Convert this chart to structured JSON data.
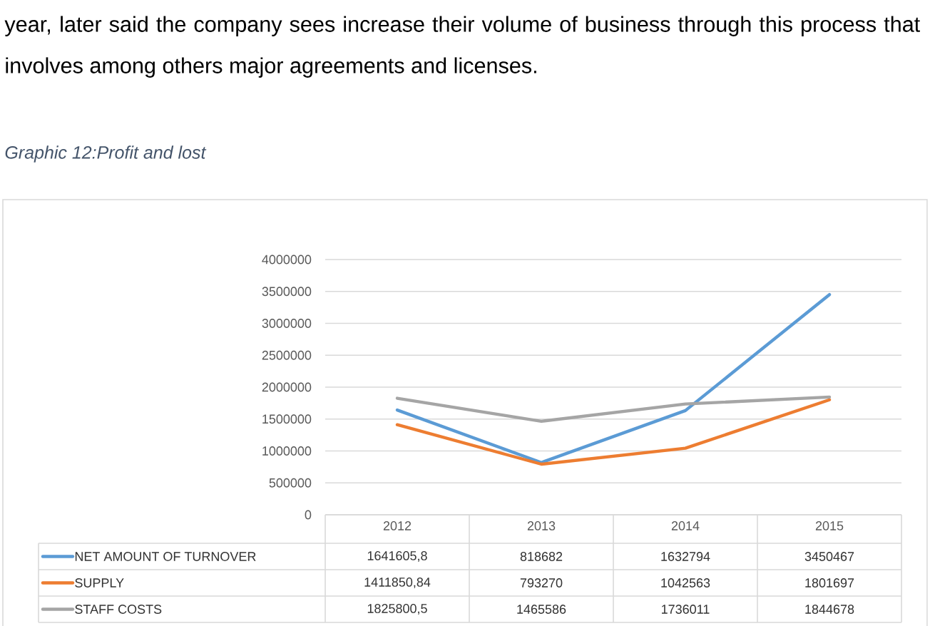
{
  "chart_data": {
    "type": "line",
    "title": "Graphic 12:Profit and lost",
    "annotations": [
      "year, later said the company sees increase their volume of business through this process that involves among others major agreements and licenses."
    ],
    "categories": [
      "2012",
      "2013",
      "2014",
      "2015"
    ],
    "series": [
      {
        "name": "NET AMOUNT OF TURNOVER",
        "color": "#5b9bd5",
        "values": [
          1641605.8,
          818682,
          1632794,
          3450467
        ],
        "value_labels": [
          "1641605,8",
          "818682",
          "1632794",
          "3450467"
        ]
      },
      {
        "name": "SUPPLY",
        "color": "#ed7d31",
        "values": [
          1411850.84,
          793270,
          1042563,
          1801697
        ],
        "value_labels": [
          "1411850,84",
          "793270",
          "1042563",
          "1801697"
        ]
      },
      {
        "name": "STAFF COSTS",
        "color": "#a5a5a5",
        "values": [
          1825800.5,
          1465586,
          1736011,
          1844678
        ],
        "value_labels": [
          "1825800,5",
          "1465586",
          "1736011",
          "1844678"
        ]
      }
    ],
    "ylim": [
      0,
      4000000
    ],
    "yticks": [
      0,
      500000,
      1000000,
      1500000,
      2000000,
      2500000,
      3000000,
      3500000,
      4000000
    ],
    "grid": "y",
    "legend": "bottom"
  }
}
